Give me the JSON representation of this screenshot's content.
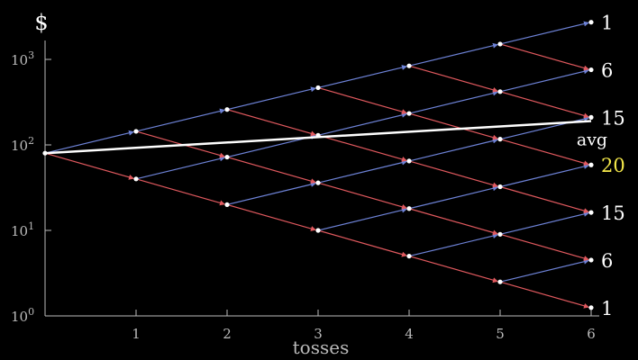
{
  "chart_data": {
    "type": "line",
    "ylabel": "$",
    "xlabel": "tosses",
    "yscale": "log",
    "ylim": [
      1,
      1800
    ],
    "xlim": [
      0,
      6
    ],
    "x_ticks": [
      "1",
      "2",
      "3",
      "4",
      "5",
      "6"
    ],
    "y_ticks": [
      {
        "value": 1,
        "base": "10",
        "exp": "0"
      },
      {
        "value": 10,
        "base": "10",
        "exp": "1"
      },
      {
        "value": 100,
        "base": "10",
        "exp": "2"
      },
      {
        "value": 1000,
        "base": "10",
        "exp": "3"
      }
    ],
    "start_value": 80,
    "up_factor": 1.8,
    "down_factor": 0.5,
    "tosses": 6,
    "up_color": "#6d82d6",
    "down_color": "#e0595e",
    "node_color": "#ffffff",
    "avg_line": {
      "label": "avg",
      "start": 80,
      "end": 190,
      "color": "#ffffff"
    },
    "outcome_counts": [
      "1",
      "6",
      "15",
      "20",
      "15",
      "6",
      "1"
    ],
    "highlight_count_index": 3,
    "highlight_color": "#f5e94a",
    "text_color": "#ffffff"
  }
}
